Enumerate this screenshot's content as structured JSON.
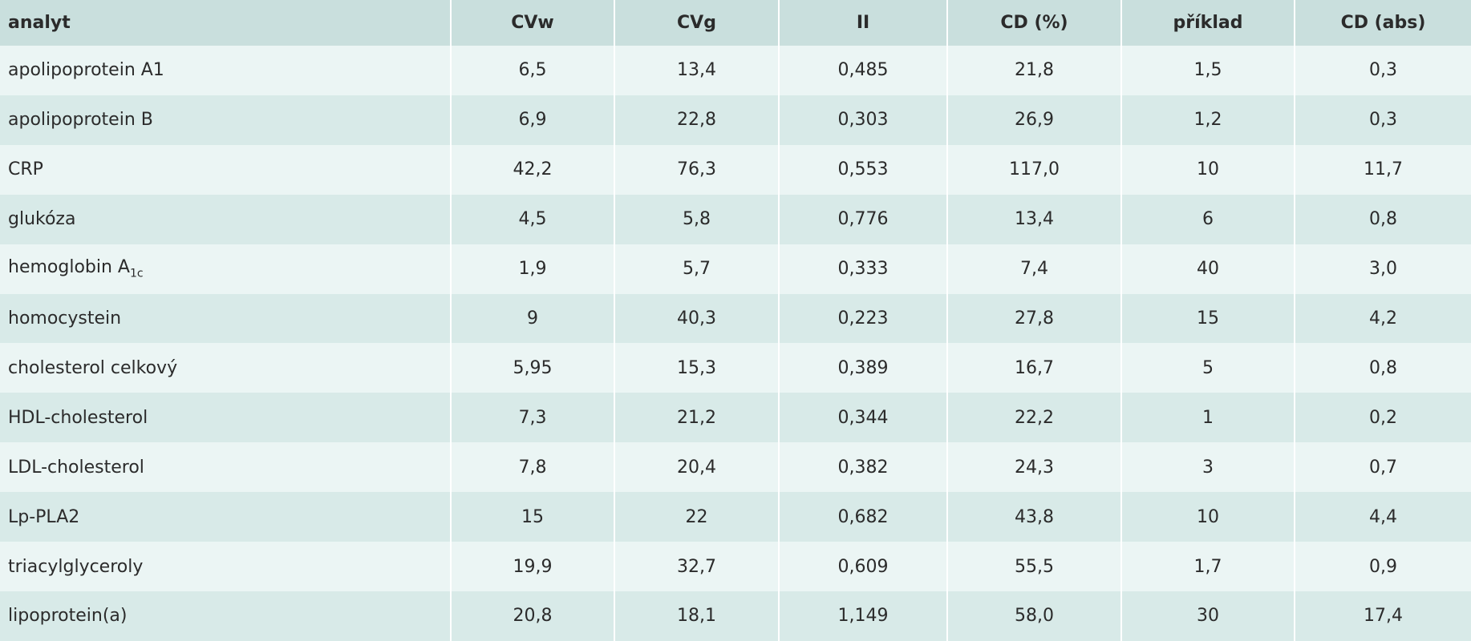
{
  "table": {
    "header": [
      "analyt",
      "CVw",
      "CVg",
      "II",
      "CD (%)",
      "příklad",
      "CD (abs)"
    ],
    "rows": [
      [
        "apolipoprotein A1",
        "6,5",
        "13,4",
        "0,485",
        "21,8",
        "1,5",
        "0,3"
      ],
      [
        "apolipoprotein B",
        "6,9",
        "22,8",
        "0,303",
        "26,9",
        "1,2",
        "0,3"
      ],
      [
        "CRP",
        "42,2",
        "76,3",
        "0,553",
        "117,0",
        "10",
        "11,7"
      ],
      [
        "glukóza",
        "4,5",
        "5,8",
        "0,776",
        "13,4",
        "6",
        "0,8"
      ],
      [
        {
          "text": "hemoglobin A",
          "sub": "1c"
        },
        "1,9",
        "5,7",
        "0,333",
        "7,4",
        "40",
        "3,0"
      ],
      [
        "homocystein",
        "9",
        "40,3",
        "0,223",
        "27,8",
        "15",
        "4,2"
      ],
      [
        "cholesterol celkový",
        "5,95",
        "15,3",
        "0,389",
        "16,7",
        "5",
        "0,8"
      ],
      [
        "HDL-cholesterol",
        "7,3",
        "21,2",
        "0,344",
        "22,2",
        "1",
        "0,2"
      ],
      [
        "LDL-cholesterol",
        "7,8",
        "20,4",
        "0,382",
        "24,3",
        "3",
        "0,7"
      ],
      [
        "Lp-PLA2",
        "15",
        "22",
        "0,682",
        "43,8",
        "10",
        "4,4"
      ],
      [
        "triacylglyceroly",
        "19,9",
        "32,7",
        "0,609",
        "55,5",
        "1,7",
        "0,9"
      ],
      [
        "lipoprotein(a)",
        "20,8",
        "18,1",
        "1,149",
        "58,0",
        "30",
        "17,4"
      ]
    ]
  }
}
